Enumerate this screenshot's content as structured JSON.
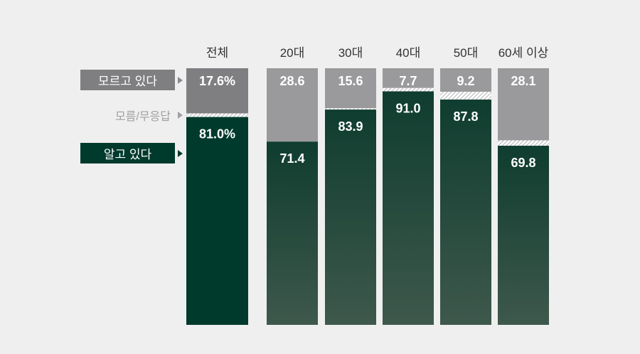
{
  "legend": {
    "dont_know": "모르고 있다",
    "no_answer": "모름/무응답",
    "know": "알고 있다"
  },
  "colors": {
    "dont_know_total": "#7f7f81",
    "dont_know": "#9a9a9c",
    "know_total": "#003a2c",
    "know_top": "#0f3d2f",
    "know_bottom": "#3e584c",
    "hatch": "#ffffff",
    "legend_no_answer_text": "#a0a0a2"
  },
  "chart_data": {
    "type": "bar",
    "stacked": true,
    "categories": [
      "전체",
      "20대",
      "30대",
      "40대",
      "50대",
      "60세 이상"
    ],
    "series": [
      {
        "name": "알고 있다",
        "values": [
          81.0,
          71.4,
          83.9,
          91.0,
          87.8,
          69.8
        ]
      },
      {
        "name": "모름/무응답",
        "values": [
          1.4,
          0.0,
          0.5,
          1.3,
          3.0,
          2.1
        ]
      },
      {
        "name": "모르고 있다",
        "values": [
          17.6,
          28.6,
          15.6,
          7.7,
          9.2,
          28.1
        ]
      }
    ],
    "labels": {
      "know": [
        "81.0%",
        "71.4",
        "83.9",
        "91.0",
        "87.8",
        "69.8"
      ],
      "dont_know": [
        "17.6%",
        "28.6",
        "15.6",
        "7.7",
        "9.2",
        "28.1"
      ]
    },
    "ylim": [
      0,
      100
    ],
    "legend_position": "left"
  }
}
